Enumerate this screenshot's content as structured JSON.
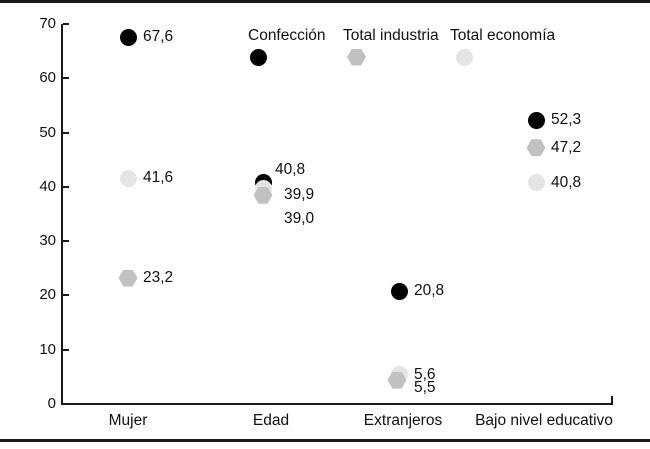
{
  "chart_data": {
    "type": "scatter",
    "title": "",
    "xlabel": "",
    "ylabel": "",
    "categories": [
      "Mujer",
      "Edad",
      "Extranjeros",
      "Bajo nivel educativo"
    ],
    "series": [
      {
        "name": "Confección",
        "marker": "circle",
        "color": "#000000",
        "values": [
          67.6,
          40.8,
          20.8,
          52.3
        ],
        "labels": [
          "67,6",
          "40,8",
          "20,8",
          "52,3"
        ]
      },
      {
        "name": "Total industria",
        "marker": "hexagon",
        "color": "#c1c1c1",
        "values": [
          23.2,
          39.0,
          5.5,
          47.2
        ],
        "labels": [
          "23,2",
          "39,0",
          "5,5",
          "47,2"
        ]
      },
      {
        "name": "Total economía",
        "marker": "circle",
        "color": "#e4e4e4",
        "values": [
          41.6,
          39.9,
          5.6,
          40.8
        ],
        "labels": [
          "41,6",
          "39,9",
          "5,6",
          "40,8"
        ]
      }
    ],
    "ylim": [
      0,
      70
    ],
    "yticks": [
      0,
      10,
      20,
      30,
      40,
      50,
      60,
      70
    ],
    "grid": false,
    "legend_position": "top",
    "decimal_separator": ","
  }
}
